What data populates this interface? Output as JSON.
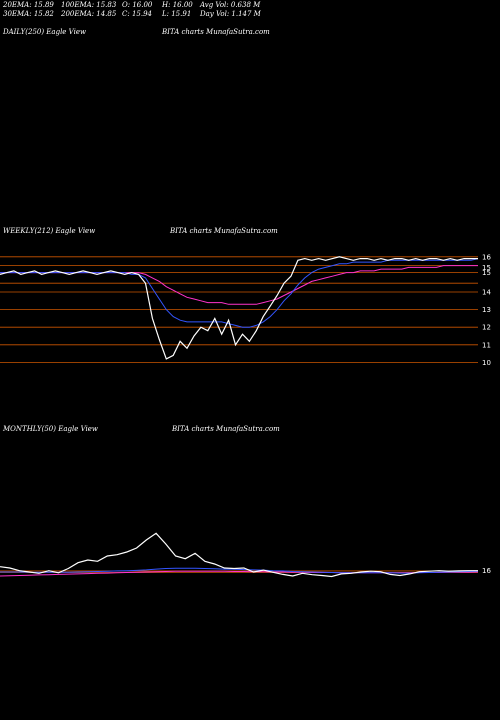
{
  "header": {
    "row1": [
      {
        "name": "ema20",
        "text": "20EMA: 15.89"
      },
      {
        "name": "ema100",
        "text": "100EMA: 15.83"
      },
      {
        "name": "open",
        "text": "O: 16.00"
      },
      {
        "name": "high",
        "text": "H: 16.00"
      },
      {
        "name": "avgvol",
        "text": "Avg Vol: 0.638  M"
      }
    ],
    "row2": [
      {
        "name": "ema30",
        "text": "30EMA: 15.82"
      },
      {
        "name": "ema200",
        "text": "200EMA: 14.85"
      },
      {
        "name": "close",
        "text": "C: 15.94"
      },
      {
        "name": "low",
        "text": "L: 15.91"
      },
      {
        "name": "dayvol",
        "text": "Day Vol: 1.147 M"
      }
    ]
  },
  "panels": {
    "daily": {
      "label": "DAILY(250) Eagle   View",
      "source": "BITA charts MunafaSutra.com"
    },
    "weekly": {
      "label": "WEEKLY(212) Eagle   View",
      "source": "BITA charts MunafaSutra.com"
    },
    "monthly": {
      "label": "MONTHLY(50) Eagle   View",
      "source": "BITA charts MunafaSutra.com"
    }
  },
  "colors": {
    "background": "#000000",
    "price": "#ffffff",
    "ema_blue": "#3355ff",
    "ema_magenta": "#ff33cc",
    "level_lines": "#cc5500",
    "ema_brown": "#8b5a2b"
  },
  "chart_data": [
    {
      "type": "line",
      "title": "WEEKLY(212) Eagle   View",
      "ylim": [
        9,
        16.5
      ],
      "yticks": [
        "16",
        "15",
        "15",
        "14",
        "13",
        "12",
        "11",
        "10"
      ],
      "series": [
        {
          "values": [
            15.0,
            15.1,
            15.2,
            15.0,
            15.1,
            15.2,
            15.0,
            15.1,
            15.2,
            15.1,
            15.0,
            15.1,
            15.2,
            15.1,
            15.0,
            15.1,
            15.2,
            15.1,
            15.0,
            15.1,
            15.0,
            14.5,
            12.5,
            11.3,
            10.2,
            10.4,
            11.2,
            10.8,
            11.5,
            12.0,
            11.8,
            12.5,
            11.6,
            12.4,
            11.0,
            11.6,
            11.2,
            11.8,
            12.6,
            13.2,
            13.8,
            14.5,
            14.9,
            15.8,
            15.9,
            15.8,
            15.9,
            15.8,
            15.9,
            16.0,
            15.9,
            15.8,
            15.9,
            15.9,
            15.8,
            15.9,
            15.8,
            15.9,
            15.9,
            15.8,
            15.9,
            15.8,
            15.9,
            15.9,
            15.8,
            15.9,
            15.8,
            15.9,
            15.9,
            15.9
          ]
        },
        {
          "values": [
            15.1,
            15.1,
            15.1,
            15.1,
            15.1,
            15.1,
            15.1,
            15.1,
            15.1,
            15.1,
            15.1,
            15.1,
            15.1,
            15.1,
            15.1,
            15.1,
            15.1,
            15.1,
            15.1,
            15.0,
            15.0,
            14.8,
            14.2,
            13.6,
            13.0,
            12.6,
            12.4,
            12.3,
            12.3,
            12.3,
            12.3,
            12.3,
            12.3,
            12.2,
            12.1,
            12.0,
            12.0,
            12.1,
            12.3,
            12.6,
            13.0,
            13.5,
            13.9,
            14.4,
            14.8,
            15.1,
            15.3,
            15.4,
            15.5,
            15.6,
            15.6,
            15.7,
            15.7,
            15.7,
            15.7,
            15.7,
            15.8,
            15.8,
            15.8,
            15.8,
            15.8,
            15.8,
            15.8,
            15.8,
            15.8,
            15.8,
            15.8,
            15.8,
            15.8,
            15.9
          ]
        },
        {
          "values": [
            15.1,
            15.1,
            15.1,
            15.1,
            15.1,
            15.1,
            15.1,
            15.1,
            15.1,
            15.1,
            15.1,
            15.1,
            15.1,
            15.1,
            15.1,
            15.1,
            15.1,
            15.1,
            15.1,
            15.1,
            15.1,
            15.0,
            14.8,
            14.6,
            14.3,
            14.1,
            13.9,
            13.7,
            13.6,
            13.5,
            13.4,
            13.4,
            13.4,
            13.3,
            13.3,
            13.3,
            13.3,
            13.3,
            13.4,
            13.5,
            13.6,
            13.8,
            14.0,
            14.2,
            14.4,
            14.6,
            14.7,
            14.8,
            14.9,
            15.0,
            15.1,
            15.1,
            15.2,
            15.2,
            15.2,
            15.3,
            15.3,
            15.3,
            15.3,
            15.4,
            15.4,
            15.4,
            15.4,
            15.4,
            15.5,
            15.5,
            15.5,
            15.5,
            15.5,
            15.5
          ]
        }
      ]
    },
    {
      "type": "line",
      "title": "MONTHLY(50) Eagle   View",
      "ylim": [
        5,
        35
      ],
      "yticks": [
        "16"
      ],
      "series": [
        {
          "values": [
            17.5,
            17.0,
            16.0,
            15.5,
            15.0,
            16.0,
            15.2,
            16.8,
            19.0,
            20.0,
            19.5,
            21.5,
            22.0,
            23.0,
            24.5,
            27.5,
            30.0,
            26.0,
            21.5,
            20.5,
            22.5,
            19.5,
            18.5,
            17.0,
            16.8,
            17.0,
            15.5,
            16.2,
            15.4,
            14.6,
            14.0,
            15.0,
            14.5,
            14.2,
            13.8,
            14.8,
            15.0,
            15.5,
            15.8,
            15.6,
            14.6,
            14.2,
            14.8,
            15.6,
            15.8,
            16.0,
            15.8,
            15.9,
            16.0,
            16.0
          ]
        },
        {
          "values": [
            15.5,
            15.5,
            15.5,
            15.4,
            15.4,
            15.4,
            15.4,
            15.4,
            15.5,
            15.6,
            15.7,
            15.8,
            15.9,
            16.0,
            16.1,
            16.3,
            16.6,
            16.8,
            16.9,
            16.9,
            16.9,
            16.8,
            16.7,
            16.6,
            16.5,
            16.4,
            16.3,
            16.2,
            16.0,
            15.9,
            15.7,
            15.6,
            15.5,
            15.4,
            15.3,
            15.2,
            15.2,
            15.2,
            15.2,
            15.2,
            15.2,
            15.1,
            15.1,
            15.2,
            15.3,
            15.4,
            15.5,
            15.6,
            15.7,
            15.8
          ]
        },
        {
          "values": [
            14.0,
            14.1,
            14.2,
            14.3,
            14.4,
            14.5,
            14.6,
            14.7,
            14.8,
            14.9,
            15.0,
            15.1,
            15.2,
            15.3,
            15.4,
            15.5,
            15.6,
            15.7,
            15.8,
            15.8,
            15.8,
            15.8,
            15.8,
            15.8,
            15.7,
            15.7,
            15.6,
            15.6,
            15.5,
            15.5,
            15.4,
            15.4,
            15.3,
            15.3,
            15.3,
            15.2,
            15.2,
            15.2,
            15.2,
            15.2,
            15.2,
            15.2,
            15.2,
            15.3,
            15.3,
            15.3,
            15.4,
            15.4,
            15.4,
            15.5
          ]
        }
      ]
    }
  ]
}
